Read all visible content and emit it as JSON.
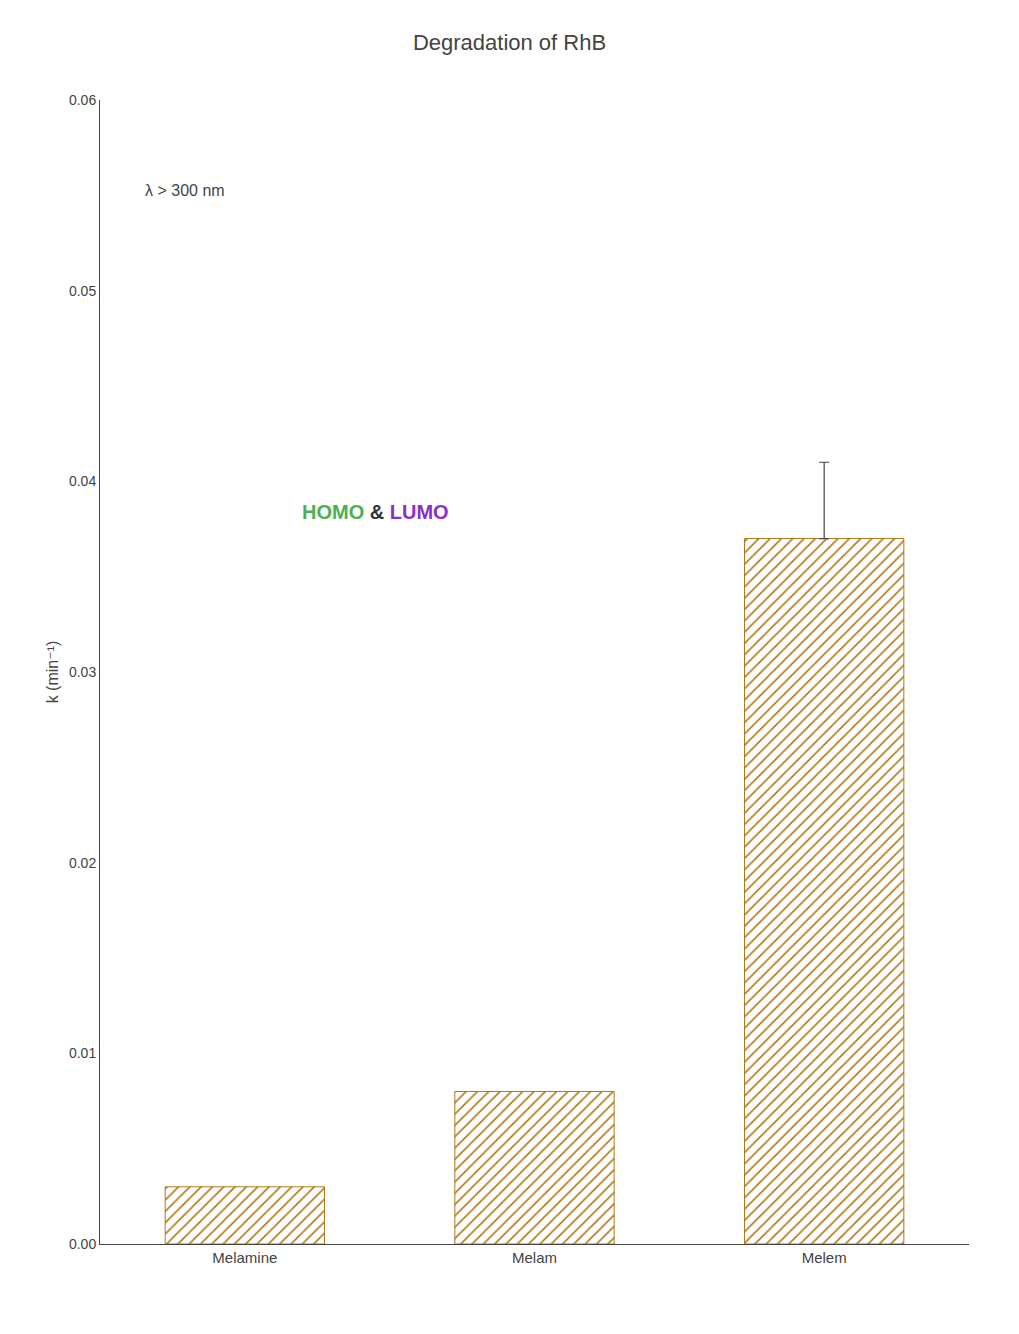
{
  "chart_data": {
    "type": "bar",
    "title": "Degradation of RhB",
    "subtitle": "λ > 300 nm",
    "categories": [
      "Melamine",
      "Melam",
      "Melem"
    ],
    "values": [
      0.003,
      0.008,
      0.037
    ],
    "color": "#f0a830",
    "error_minus": [
      null,
      null,
      0
    ],
    "error_plus": [
      null,
      null,
      0.004
    ],
    "ylabel": "k (min⁻¹)",
    "ylim": [
      0.0,
      0.06
    ],
    "yticks": [
      {
        "value": 0.0,
        "label": "0.00"
      },
      0.01,
      0.02,
      0.03,
      0.04,
      0.05,
      0.06
    ],
    "grid": false,
    "annotations": [
      {
        "text": "HOMO",
        "color": "#4caf50"
      },
      {
        "text": "&"
      },
      {
        "text": "LUMO",
        "color": "#8b2fc9"
      }
    ]
  }
}
